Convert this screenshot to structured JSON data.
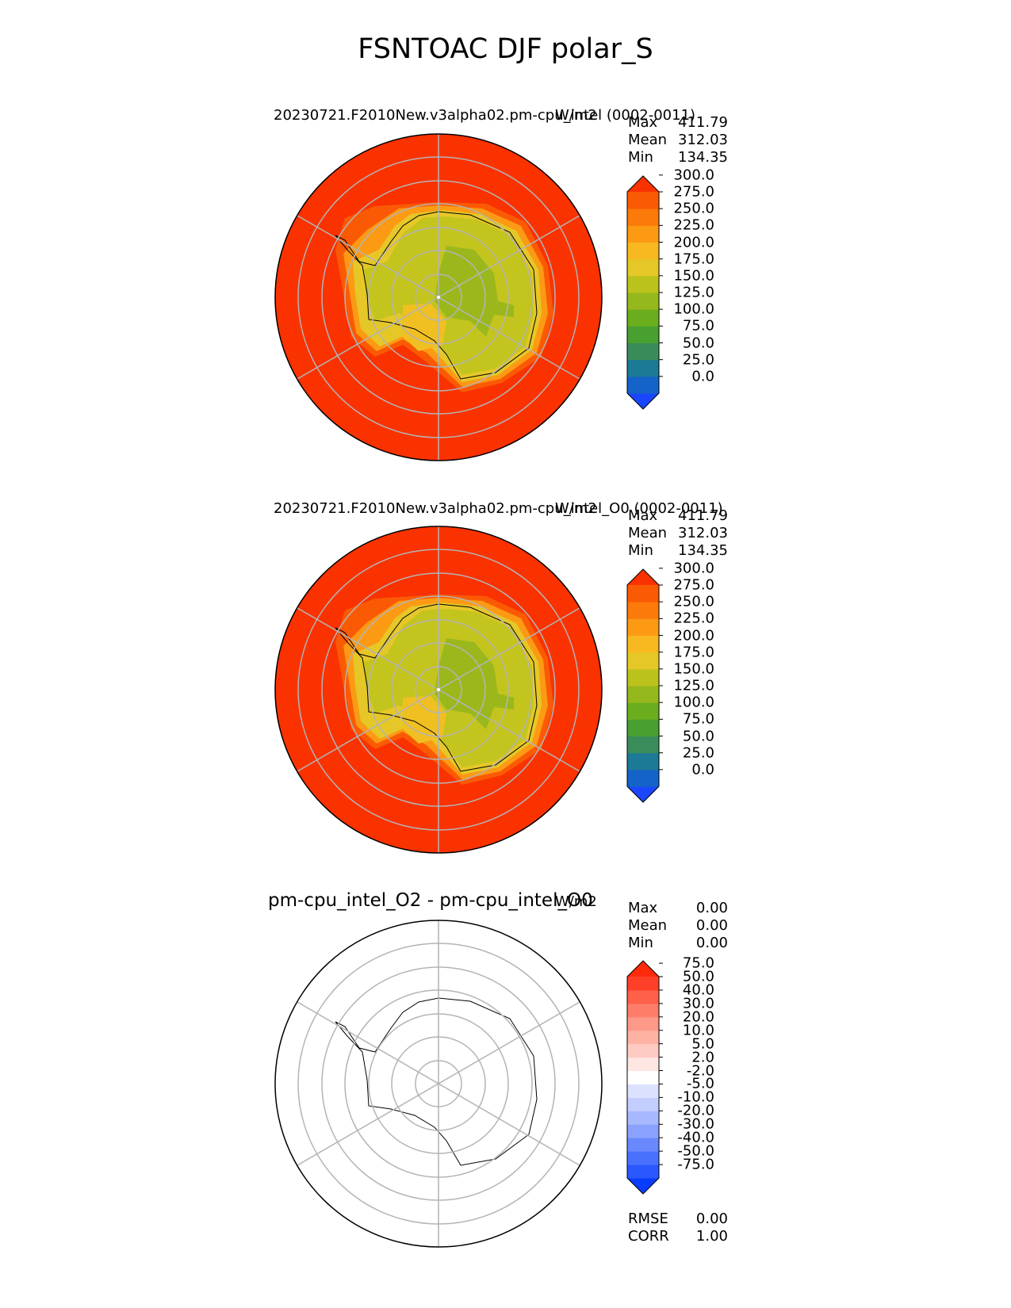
{
  "figure": {
    "title": "FSNTOAC DJF polar_S"
  },
  "panels": [
    {
      "title": "20230721.F2010New.v3alpha02.pm-cpu_intel (0002-0011)",
      "units": "W/m2",
      "stats": [
        {
          "label": "Max",
          "value": "411.79"
        },
        {
          "label": "Mean",
          "value": "312.03"
        },
        {
          "label": "Min",
          "value": "134.35"
        }
      ],
      "colorbar": {
        "colors": [
          "#1a47fe",
          "#1463c8",
          "#1c7a96",
          "#3a8c5a",
          "#48a030",
          "#6aae1e",
          "#95b81c",
          "#bcc21c",
          "#e5c828",
          "#f8b820",
          "#fc9a14",
          "#fc7a0a",
          "#fb5a04",
          "#fa3200"
        ],
        "ticks": [
          "0.0",
          "25.0",
          "50.0",
          "75.0",
          "100.0",
          "125.0",
          "150.0",
          "175.0",
          "200.0",
          "225.0",
          "250.0",
          "275.0",
          "300.0"
        ]
      }
    },
    {
      "title": "20230721.F2010New.v3alpha02.pm-cpu_intel_O0 (0002-0011)",
      "units": "W/m2",
      "stats": [
        {
          "label": "Max",
          "value": "411.79"
        },
        {
          "label": "Mean",
          "value": "312.03"
        },
        {
          "label": "Min",
          "value": "134.35"
        }
      ],
      "colorbar": {
        "colors": [
          "#1a47fe",
          "#1463c8",
          "#1c7a96",
          "#3a8c5a",
          "#48a030",
          "#6aae1e",
          "#95b81c",
          "#bcc21c",
          "#e5c828",
          "#f8b820",
          "#fc9a14",
          "#fc7a0a",
          "#fb5a04",
          "#fa3200"
        ],
        "ticks": [
          "0.0",
          "25.0",
          "50.0",
          "75.0",
          "100.0",
          "125.0",
          "150.0",
          "175.0",
          "200.0",
          "225.0",
          "250.0",
          "275.0",
          "300.0"
        ]
      }
    },
    {
      "title": "pm-cpu_intel_O2 - pm-cpu_intel_O0",
      "units": "W/m2",
      "stats": [
        {
          "label": "Max",
          "value": "0.00"
        },
        {
          "label": "Mean",
          "value": "0.00"
        },
        {
          "label": "Min",
          "value": "0.00"
        }
      ],
      "colorbar": {
        "colors": [
          "#0a3cfe",
          "#2a58fe",
          "#4a70fe",
          "#6a88fe",
          "#8aa2fe",
          "#a8b8fe",
          "#c4cefe",
          "#dce2fe",
          "#ffffff",
          "#fee6e2",
          "#fecbc2",
          "#feb2a4",
          "#fe9888",
          "#fe7c6a",
          "#fe604a",
          "#fe4028",
          "#fe2a0a"
        ],
        "ticks": [
          "-75.0",
          "-50.0",
          "-40.0",
          "-30.0",
          "-20.0",
          "-10.0",
          "-5.0",
          "-2.0",
          "2.0",
          "5.0",
          "10.0",
          "20.0",
          "30.0",
          "40.0",
          "50.0",
          "75.0"
        ]
      },
      "metrics": [
        {
          "label": "RMSE",
          "value": "0.00"
        },
        {
          "label": "CORR",
          "value": "1.00"
        }
      ]
    }
  ]
}
